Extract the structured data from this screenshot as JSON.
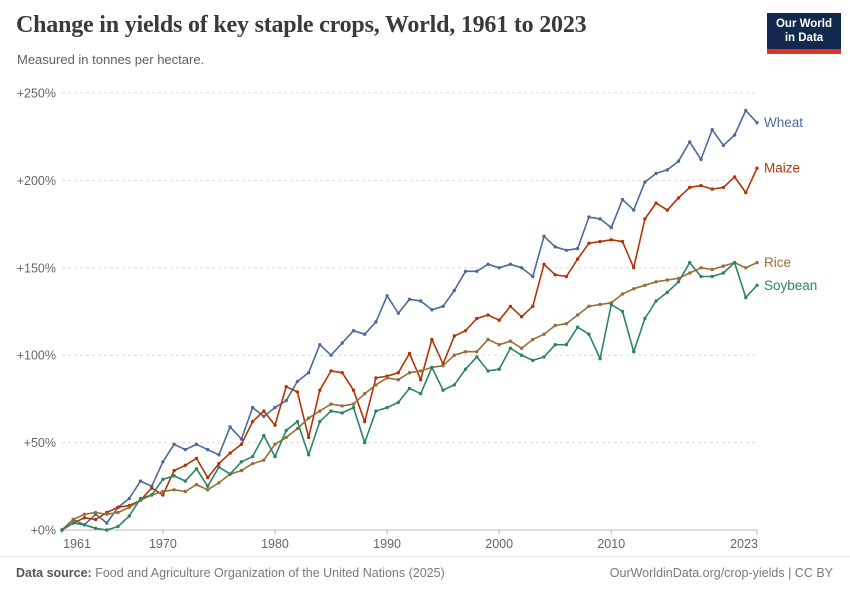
{
  "header": {
    "title": "Change in yields of key staple crops, World, 1961 to 2023",
    "subtitle": "Measured in tonnes per hectare.",
    "logo": {
      "line1": "Our World",
      "line2": "in Data",
      "bg_color": "#12294d",
      "accent_color": "#dc3327"
    }
  },
  "chart_data": {
    "type": "line",
    "title": "Change in yields of key staple crops, World, 1961 to 2023",
    "subtitle": "Measured in tonnes per hectare.",
    "unit": "% change since 1961",
    "xlim": [
      1961,
      2023
    ],
    "ylim": [
      0,
      250
    ],
    "grid": "horizontal dashed",
    "legend_position": "right edge line labels",
    "yticks": [
      0,
      50,
      100,
      150,
      200,
      250
    ],
    "ytick_labels": [
      "+0%",
      "+50%",
      "+100%",
      "+150%",
      "+200%",
      "+250%"
    ],
    "xtick_years": [
      1961,
      1970,
      1980,
      1990,
      2000,
      2010,
      2023
    ],
    "xtick_labels": [
      "1961",
      "1970",
      "1980",
      "1990",
      "2000",
      "2010",
      "2023"
    ],
    "style": {
      "grid_color": "#dcdcdc",
      "axis_color": "#bbbbbb",
      "tick_text_color": "#666666"
    },
    "years": [
      1961,
      1962,
      1963,
      1964,
      1965,
      1966,
      1967,
      1968,
      1969,
      1970,
      1971,
      1972,
      1973,
      1974,
      1975,
      1976,
      1977,
      1978,
      1979,
      1980,
      1981,
      1982,
      1983,
      1984,
      1985,
      1986,
      1987,
      1988,
      1989,
      1990,
      1991,
      1992,
      1993,
      1994,
      1995,
      1996,
      1997,
      1998,
      1999,
      2000,
      2001,
      2002,
      2003,
      2004,
      2005,
      2006,
      2007,
      2008,
      2009,
      2010,
      2011,
      2012,
      2013,
      2014,
      2015,
      2016,
      2017,
      2018,
      2019,
      2020,
      2021,
      2022,
      2023
    ],
    "series": [
      {
        "name": "Wheat",
        "color": "#4C6A9C",
        "values": [
          0,
          6,
          3,
          9,
          4,
          13,
          18,
          28,
          25,
          39,
          49,
          46,
          49,
          46,
          43,
          59,
          52,
          70,
          65,
          70,
          74,
          85,
          90,
          106,
          100,
          107,
          114,
          112,
          119,
          134,
          124,
          132,
          131,
          126,
          128,
          137,
          148,
          148,
          152,
          150,
          152,
          150,
          145,
          168,
          162,
          160,
          161,
          179,
          178,
          173,
          189,
          183,
          199,
          204,
          206,
          211,
          222,
          212,
          229,
          220,
          226,
          240,
          233
        ]
      },
      {
        "name": "Maize",
        "color": "#B13507",
        "values": [
          0,
          4,
          7,
          6,
          10,
          13,
          14,
          17,
          24,
          20,
          34,
          37,
          41,
          30,
          38,
          44,
          49,
          62,
          68,
          60,
          82,
          79,
          53,
          80,
          91,
          90,
          80,
          62,
          87,
          88,
          90,
          101,
          86,
          109,
          95,
          111,
          114,
          121,
          123,
          120,
          128,
          122,
          128,
          152,
          146,
          145,
          155,
          164,
          165,
          166,
          165,
          150,
          178,
          187,
          183,
          190,
          196,
          197,
          195,
          196,
          202,
          193,
          207
        ]
      },
      {
        "name": "Rice",
        "color": "#996D39",
        "values": [
          0,
          6,
          9,
          10,
          9,
          10,
          13,
          17,
          20,
          22,
          23,
          22,
          26,
          23,
          27,
          32,
          34,
          38,
          40,
          49,
          53,
          58,
          64,
          68,
          72,
          71,
          72,
          78,
          83,
          87,
          86,
          90,
          91,
          93,
          94,
          100,
          102,
          102,
          109,
          106,
          108,
          104,
          109,
          112,
          117,
          118,
          123,
          128,
          129,
          130,
          135,
          138,
          140,
          142,
          143,
          144,
          147,
          150,
          149,
          151,
          153,
          150,
          153
        ]
      },
      {
        "name": "Soybean",
        "color": "#2C8465",
        "values": [
          0,
          4,
          3,
          1,
          0,
          2,
          8,
          18,
          20,
          29,
          31,
          28,
          35,
          25,
          36,
          32,
          39,
          42,
          54,
          42,
          57,
          62,
          43,
          62,
          68,
          67,
          70,
          50,
          68,
          70,
          73,
          81,
          78,
          93,
          80,
          83,
          92,
          99,
          91,
          92,
          104,
          100,
          97,
          99,
          106,
          106,
          116,
          112,
          98,
          129,
          125,
          102,
          121,
          131,
          136,
          142,
          153,
          145,
          145,
          147,
          153,
          133,
          140
        ]
      }
    ]
  },
  "footer": {
    "source_label": "Data source:",
    "source_text": " Food and Agriculture Organization of the United Nations (2025)",
    "credit": "OurWorldinData.org/crop-yields | CC BY"
  }
}
